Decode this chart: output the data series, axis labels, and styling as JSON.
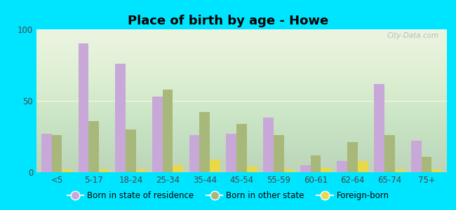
{
  "title": "Place of birth by age - Howe",
  "categories": [
    "<5",
    "5-17",
    "18-24",
    "25-34",
    "35-44",
    "45-54",
    "55-59",
    "60-61",
    "62-64",
    "65-74",
    "75+"
  ],
  "born_in_state": [
    27,
    90,
    76,
    53,
    26,
    27,
    38,
    5,
    8,
    62,
    22
  ],
  "born_in_other_state": [
    26,
    36,
    30,
    58,
    42,
    34,
    26,
    12,
    21,
    26,
    11
  ],
  "foreign_born": [
    2,
    2,
    2,
    5,
    9,
    4,
    2,
    3,
    8,
    2,
    2
  ],
  "ylim": [
    0,
    100
  ],
  "yticks": [
    0,
    50,
    100
  ],
  "bar_width": 0.28,
  "color_state": "#c8a8d8",
  "color_other": "#a8b87a",
  "color_foreign": "#e8d84a",
  "background_top": "#f0f8e8",
  "background_bottom": "#d8eec8",
  "outer_background": "#00e5ff",
  "legend_labels": [
    "Born in state of residence",
    "Born in other state",
    "Foreign-born"
  ]
}
